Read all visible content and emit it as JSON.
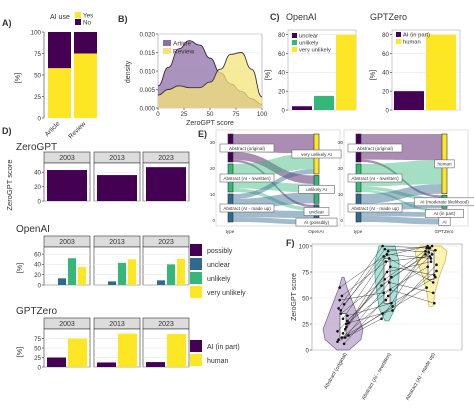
{
  "colors": {
    "purple": "#440154",
    "yellow": "#fde725",
    "blue": "#31688e",
    "green": "#35b779",
    "violin_purple": "#bfa9cf",
    "violin_teal": "#9ad8cf",
    "violin_yellow": "#fbf0a0",
    "density_purple": "#8e6fa5",
    "density_yellow": "#f3e37a",
    "strip_bg": "#dcdcdc",
    "grid": "#e7e7e7"
  },
  "panels": {
    "A": "A)",
    "B": "B)",
    "C": "C)",
    "D": "D)",
    "E": "E)",
    "F": "F)"
  },
  "panel_a": {
    "legend_title": "AI use",
    "legend_items": [
      "Yes",
      "No"
    ],
    "ylabel": "[%]",
    "yticks": [
      "0",
      "25",
      "50",
      "75",
      "100"
    ],
    "categories": [
      "Article",
      "Review"
    ]
  },
  "panel_b": {
    "xlabel": "ZeroGPT score",
    "ylabel": "density",
    "xticks": [
      "0",
      "25",
      "50",
      "75",
      "100"
    ],
    "yticks": [
      "0.000",
      "0.005",
      "0.010",
      "0.015",
      "0.020"
    ],
    "legend_items": [
      "Article",
      "Review"
    ]
  },
  "panel_c": {
    "title_openai": "OpenAI",
    "title_gptzero": "GPTZero",
    "ylabel": "[%]",
    "yticks_openai": [
      "0",
      "20",
      "40",
      "60",
      "80"
    ],
    "yticks_gptzero": [
      "0",
      "20",
      "40",
      "60",
      "80"
    ],
    "legend_openai": [
      "unclear",
      "unlikely",
      "very unlikely"
    ],
    "legend_gptzero": [
      "AI (in part)",
      "human"
    ]
  },
  "panel_d": {
    "title_zerogpt": "ZeroGPT",
    "title_openai": "OpenAI",
    "title_gptzero": "GPTZero",
    "ylabel_zerogpt": "ZeroGPT score",
    "ylabel_pct": "[%]",
    "years": [
      "2003",
      "2013",
      "2023"
    ],
    "yticks_zerogpt": [
      "0",
      "20",
      "40"
    ],
    "yticks_openai": [
      "0",
      "20",
      "40",
      "60"
    ],
    "yticks_gptzero": [
      "0",
      "25",
      "50",
      "75"
    ],
    "legend_openai": [
      "possibly",
      "unclear",
      "unlikely",
      "very unlikely"
    ],
    "legend_gptzero": [
      "AI (in part)",
      "human"
    ]
  },
  "panel_e": {
    "left_axis_labels": [
      "type",
      "OpenAI"
    ],
    "right_axis_labels": [
      "type",
      "GPTZero"
    ],
    "left_sources": [
      "Abstract (original)",
      "Abstract (AI - rewritten)",
      "Abstract (AI - made up)"
    ],
    "left_targets": [
      "very unlikely AI",
      "unlikely AI",
      "unclear",
      "AI (possibly)"
    ],
    "right_sources": [
      "Abstract (original)",
      "Abstract (AI - rewritten)",
      "Abstract (AI - made up)"
    ],
    "right_targets": [
      "human",
      "AI (moderate likelihood)",
      "AI (in part)",
      "AI"
    ],
    "yticks": [
      "30",
      "20",
      "10",
      "0"
    ]
  },
  "panel_f": {
    "ylabel": "ZeroGPT score",
    "yticks": [
      "0",
      "25",
      "50",
      "75",
      "100"
    ],
    "categories": [
      "Abstract (original)",
      "Abstract (AI - rewritten)",
      "Abstract (AI - made up)"
    ]
  },
  "chart_data": [
    {
      "id": "A",
      "type": "bar",
      "categories": [
        "Article",
        "Review"
      ],
      "series": [
        {
          "name": "Yes",
          "values": [
            58,
            75
          ]
        },
        {
          "name": "No",
          "values": [
            42,
            25
          ]
        }
      ],
      "ylabel": "[%]",
      "ylim": [
        0,
        100
      ]
    },
    {
      "id": "B",
      "type": "area",
      "x": [
        0,
        10,
        20,
        30,
        40,
        50,
        60,
        70,
        80,
        90,
        100
      ],
      "series": [
        {
          "name": "Article",
          "values": [
            0.006,
            0.011,
            0.016,
            0.0182,
            0.017,
            0.0135,
            0.0095,
            0.0065,
            0.0045,
            0.0025,
            0.001
          ]
        },
        {
          "name": "Review",
          "values": [
            0.0035,
            0.005,
            0.006,
            0.0055,
            0.0055,
            0.007,
            0.0105,
            0.0145,
            0.015,
            0.0105,
            0.003
          ]
        }
      ],
      "xlabel": "ZeroGPT score",
      "ylabel": "density",
      "ylim": [
        0,
        0.02
      ],
      "xlim": [
        0,
        100
      ]
    },
    {
      "id": "C-OpenAI",
      "type": "bar",
      "categories": [
        "unclear",
        "unlikely",
        "very unlikely"
      ],
      "values": [
        4,
        15,
        80
      ],
      "ylabel": "[%]",
      "ylim": [
        0,
        85
      ]
    },
    {
      "id": "C-GPTZero",
      "type": "bar",
      "categories": [
        "AI (in part)",
        "human"
      ],
      "values": [
        20,
        80
      ],
      "ylabel": "[%]",
      "ylim": [
        0,
        85
      ]
    },
    {
      "id": "D-ZeroGPT",
      "type": "bar",
      "categories": [
        "2003",
        "2013",
        "2023"
      ],
      "values": [
        43,
        36,
        47
      ],
      "ylabel": "ZeroGPT score",
      "ylim": [
        0,
        50
      ]
    },
    {
      "id": "D-OpenAI",
      "type": "bar",
      "categories": [
        "2003",
        "2013",
        "2023"
      ],
      "series": [
        {
          "name": "possibly",
          "values": [
            0,
            0,
            0
          ]
        },
        {
          "name": "unclear",
          "values": [
            13,
            7,
            9
          ]
        },
        {
          "name": "unlikely",
          "values": [
            52,
            43,
            40
          ]
        },
        {
          "name": "very unlikely",
          "values": [
            35,
            50,
            51
          ]
        }
      ],
      "ylabel": "[%]",
      "ylim": [
        0,
        70
      ]
    },
    {
      "id": "D-GPTZero",
      "type": "bar",
      "categories": [
        "2003",
        "2013",
        "2023"
      ],
      "series": [
        {
          "name": "AI (in part)",
          "values": [
            25,
            12,
            13
          ]
        },
        {
          "name": "human",
          "values": [
            75,
            88,
            87
          ]
        }
      ],
      "ylabel": "[%]",
      "ylim": [
        0,
        95
      ]
    },
    {
      "id": "F",
      "type": "scatter",
      "categories": [
        "Abstract (original)",
        "Abstract (AI - rewritten)",
        "Abstract (AI - made up)"
      ],
      "paired_values": [
        [
          18,
          62,
          92
        ],
        [
          12,
          48,
          98
        ],
        [
          22,
          80,
          72
        ],
        [
          10,
          35,
          60
        ],
        [
          30,
          92,
          88
        ],
        [
          28,
          70,
          96
        ],
        [
          48,
          55,
          80
        ],
        [
          44,
          95,
          100
        ],
        [
          14,
          42,
          76
        ],
        [
          35,
          68,
          98
        ],
        [
          20,
          88,
          65
        ],
        [
          8,
          30,
          95
        ],
        [
          52,
          85,
          90
        ],
        [
          25,
          58,
          45
        ],
        [
          40,
          100,
          98
        ],
        [
          16,
          75,
          85
        ],
        [
          33,
          45,
          70
        ],
        [
          60,
          90,
          100
        ],
        [
          6,
          52,
          92
        ],
        [
          26,
          38,
          82
        ],
        [
          38,
          97,
          94
        ],
        [
          12,
          65,
          55
        ]
      ],
      "ylabel": "ZeroGPT score",
      "ylim": [
        0,
        100
      ]
    }
  ]
}
